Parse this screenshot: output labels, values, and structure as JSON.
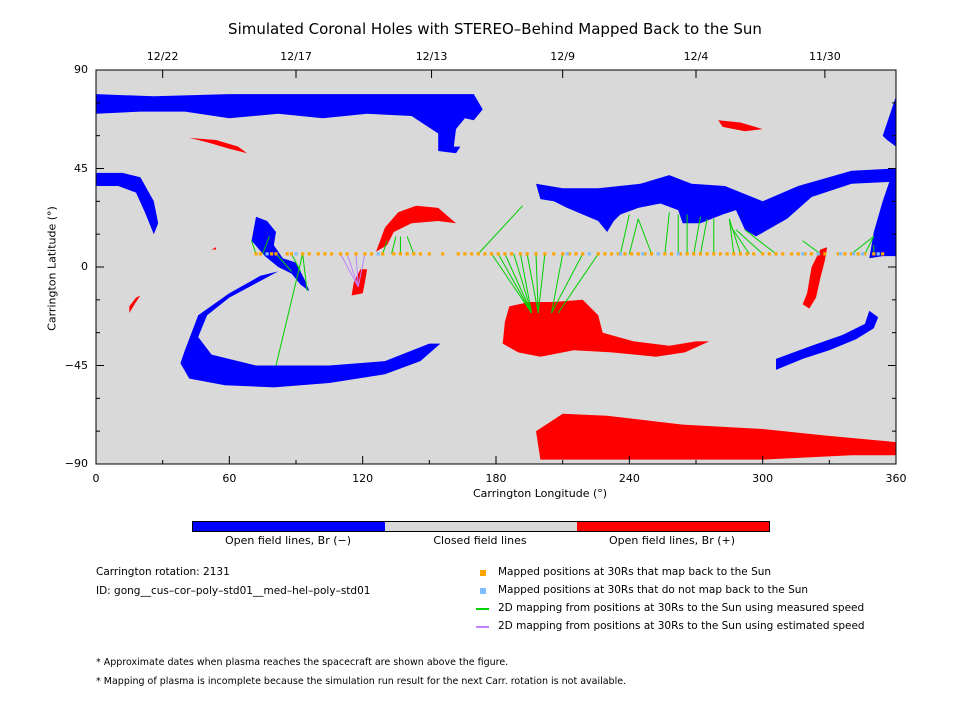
{
  "title": "Simulated Coronal Holes with STEREO–Behind Mapped Back to the Sun",
  "colors": {
    "open_neg": "#0000ff",
    "closed": "#d9d9d9",
    "open_pos": "#ff0000",
    "mapped": "#ffa500",
    "not_mapped": "#7fbfff",
    "measured": "#00d000",
    "estimated": "#c080ff"
  },
  "chart_data": {
    "type": "heatmap",
    "xlabel": "Carrington Longitude (°)",
    "ylabel": "Carrington Latitude (°)",
    "xlim": [
      0,
      360
    ],
    "ylim": [
      -90,
      90
    ],
    "x_ticks": [
      "0",
      "60",
      "120",
      "180",
      "240",
      "300",
      "360"
    ],
    "y_ticks": [
      "90",
      "45",
      "0",
      "−45",
      "−90"
    ],
    "top_dates": [
      {
        "lon": 30,
        "label": "12/22"
      },
      {
        "lon": 90,
        "label": "12/17"
      },
      {
        "lon": 151,
        "label": "12/13"
      },
      {
        "lon": 210,
        "label": "12/9"
      },
      {
        "lon": 270,
        "label": "12/4"
      },
      {
        "lon": 328,
        "label": "11/30"
      }
    ],
    "regions": [
      {
        "polarity": "negative",
        "points": [
          [
            0,
            79
          ],
          [
            26,
            78
          ],
          [
            60,
            79
          ],
          [
            90,
            79
          ],
          [
            120,
            79
          ],
          [
            170,
            79
          ],
          [
            174,
            72
          ],
          [
            170,
            67
          ],
          [
            166,
            68
          ],
          [
            162,
            63
          ],
          [
            161,
            55
          ],
          [
            164,
            55
          ],
          [
            162,
            52
          ],
          [
            154,
            53
          ],
          [
            154,
            61
          ],
          [
            142,
            69
          ],
          [
            122,
            70
          ],
          [
            102,
            68
          ],
          [
            82,
            70
          ],
          [
            60,
            68
          ],
          [
            40,
            71
          ],
          [
            20,
            71
          ],
          [
            0,
            70
          ]
        ]
      },
      {
        "polarity": "negative",
        "points": [
          [
            0,
            43
          ],
          [
            12,
            43
          ],
          [
            20,
            41
          ],
          [
            26,
            30
          ],
          [
            28,
            20
          ],
          [
            26,
            15
          ],
          [
            22,
            25
          ],
          [
            18,
            34
          ],
          [
            10,
            37
          ],
          [
            0,
            37
          ]
        ]
      },
      {
        "polarity": "negative",
        "points": [
          [
            72,
            23
          ],
          [
            77,
            21
          ],
          [
            81,
            16
          ],
          [
            80,
            10
          ],
          [
            84,
            4
          ],
          [
            90,
            2
          ],
          [
            94,
            -6
          ],
          [
            96,
            -11
          ],
          [
            92,
            -8
          ],
          [
            88,
            -3
          ],
          [
            82,
            0
          ],
          [
            76,
            5
          ],
          [
            70,
            12
          ]
        ]
      },
      {
        "polarity": "negative",
        "points": [
          [
            40,
            -38
          ],
          [
            38,
            -44
          ],
          [
            42,
            -51
          ],
          [
            58,
            -54
          ],
          [
            80,
            -55
          ],
          [
            105,
            -53
          ],
          [
            130,
            -49
          ],
          [
            146,
            -43
          ],
          [
            155,
            -35
          ],
          [
            150,
            -35
          ],
          [
            130,
            -43
          ],
          [
            105,
            -45
          ],
          [
            72,
            -45
          ],
          [
            52,
            -40
          ],
          [
            46,
            -32
          ],
          [
            50,
            -22
          ],
          [
            60,
            -14
          ],
          [
            82,
            -2
          ],
          [
            74,
            -4
          ],
          [
            60,
            -12
          ],
          [
            46,
            -22
          ]
        ]
      },
      {
        "polarity": "negative",
        "points": [
          [
            198,
            38
          ],
          [
            210,
            36
          ],
          [
            226,
            36
          ],
          [
            245,
            38
          ],
          [
            258,
            42
          ],
          [
            268,
            38
          ],
          [
            283,
            37
          ],
          [
            300,
            30
          ],
          [
            316,
            37
          ],
          [
            340,
            44
          ],
          [
            360,
            45
          ],
          [
            360,
            39
          ],
          [
            340,
            38
          ],
          [
            322,
            32
          ],
          [
            311,
            22
          ],
          [
            297,
            14
          ],
          [
            292,
            17
          ],
          [
            288,
            26
          ],
          [
            282,
            24
          ],
          [
            272,
            20
          ],
          [
            264,
            20
          ],
          [
            262,
            26
          ],
          [
            254,
            29
          ],
          [
            244,
            27
          ],
          [
            236,
            24
          ],
          [
            233,
            21
          ],
          [
            230,
            16
          ],
          [
            226,
            21
          ],
          [
            212,
            27
          ],
          [
            206,
            30
          ],
          [
            200,
            31
          ]
        ]
      },
      {
        "polarity": "negative",
        "points": [
          [
            306,
            -47
          ],
          [
            318,
            -42
          ],
          [
            330,
            -38
          ],
          [
            342,
            -33
          ],
          [
            350,
            -28
          ],
          [
            352,
            -23
          ],
          [
            348,
            -20
          ],
          [
            346,
            -26
          ],
          [
            336,
            -31
          ],
          [
            322,
            -36
          ],
          [
            306,
            -42
          ]
        ]
      },
      {
        "polarity": "negative",
        "points": [
          [
            350,
            16
          ],
          [
            354,
            30
          ],
          [
            358,
            42
          ],
          [
            360,
            45
          ],
          [
            360,
            5
          ],
          [
            354,
            5
          ],
          [
            348,
            4
          ]
        ]
      },
      {
        "polarity": "negative",
        "points": [
          [
            354,
            60
          ],
          [
            358,
            72
          ],
          [
            360,
            78
          ],
          [
            360,
            55
          ],
          [
            356,
            58
          ]
        ]
      },
      {
        "polarity": "positive",
        "points": [
          [
            120,
            -12
          ],
          [
            121,
            -7
          ],
          [
            122,
            -1
          ],
          [
            119,
            -1
          ],
          [
            116,
            -7
          ],
          [
            115,
            -13
          ]
        ]
      },
      {
        "polarity": "positive",
        "points": [
          [
            126,
            7
          ],
          [
            130,
            18
          ],
          [
            136,
            25
          ],
          [
            144,
            28
          ],
          [
            154,
            27
          ],
          [
            162,
            20
          ],
          [
            154,
            21
          ],
          [
            142,
            20
          ],
          [
            134,
            16
          ],
          [
            131,
            10
          ]
        ]
      },
      {
        "polarity": "positive",
        "points": [
          [
            184,
            -25
          ],
          [
            183,
            -35
          ],
          [
            190,
            -39
          ],
          [
            200,
            -41
          ],
          [
            215,
            -38
          ],
          [
            232,
            -39
          ],
          [
            252,
            -41
          ],
          [
            265,
            -39
          ],
          [
            276,
            -34
          ],
          [
            270,
            -34
          ],
          [
            258,
            -36
          ],
          [
            242,
            -34
          ],
          [
            228,
            -30
          ],
          [
            226,
            -22
          ],
          [
            219,
            -15
          ],
          [
            206,
            -16
          ],
          [
            195,
            -16
          ],
          [
            186,
            -18
          ]
        ]
      },
      {
        "polarity": "positive",
        "points": [
          [
            200,
            -88
          ],
          [
            220,
            -88
          ],
          [
            260,
            -88
          ],
          [
            300,
            -88
          ],
          [
            340,
            -86
          ],
          [
            360,
            -86
          ],
          [
            360,
            -80
          ],
          [
            328,
            -77
          ],
          [
            300,
            -74
          ],
          [
            264,
            -72
          ],
          [
            230,
            -68
          ],
          [
            210,
            -67
          ],
          [
            198,
            -75
          ]
        ]
      },
      {
        "polarity": "positive",
        "points": [
          [
            318,
            -17
          ],
          [
            320,
            -12
          ],
          [
            322,
            0
          ],
          [
            326,
            8
          ],
          [
            329,
            9
          ],
          [
            328,
            3
          ],
          [
            326,
            -5
          ],
          [
            324,
            -14
          ],
          [
            321,
            -19
          ]
        ]
      },
      {
        "polarity": "positive",
        "points": [
          [
            42,
            59
          ],
          [
            50,
            57
          ],
          [
            60,
            54
          ],
          [
            68,
            52
          ],
          [
            64,
            55
          ],
          [
            54,
            58
          ]
        ]
      },
      {
        "polarity": "positive",
        "points": [
          [
            280,
            67
          ],
          [
            290,
            66
          ],
          [
            300,
            63
          ],
          [
            292,
            62
          ],
          [
            282,
            64
          ]
        ]
      },
      {
        "polarity": "positive",
        "points": [
          [
            15,
            -21
          ],
          [
            18,
            -16
          ],
          [
            20,
            -13
          ],
          [
            18,
            -14
          ],
          [
            15,
            -18
          ]
        ]
      },
      {
        "polarity": "positive",
        "points": [
          [
            52,
            8
          ],
          [
            54,
            9
          ],
          [
            54,
            8
          ]
        ]
      }
    ],
    "mapped_points": [
      72,
      74,
      79,
      81,
      86,
      88,
      93,
      96,
      100,
      103,
      106,
      110,
      113,
      117,
      121,
      124,
      129,
      134,
      137,
      140,
      143,
      146,
      150,
      156,
      163,
      166,
      169,
      172,
      175,
      178,
      181,
      184,
      187,
      191,
      194,
      198,
      202,
      206,
      210,
      213,
      216,
      219,
      226,
      229,
      232,
      235,
      238,
      241,
      244,
      247,
      250,
      253,
      256,
      259,
      263,
      266,
      269,
      272,
      275,
      278,
      281,
      284,
      287,
      290,
      293,
      296,
      300,
      303,
      306,
      309,
      313,
      316,
      319,
      322,
      325,
      328,
      334,
      337,
      340,
      343,
      346,
      350,
      354
    ],
    "unmapped_points": [
      77,
      90,
      127,
      212,
      222,
      236,
      246,
      253,
      262,
      318,
      325,
      335,
      341,
      345,
      352
    ],
    "mapping_lat": 6,
    "measured_lines": [
      [
        72,
        6,
        70,
        12
      ],
      [
        75,
        6,
        78,
        14
      ],
      [
        81,
        6,
        88,
        -2
      ],
      [
        88,
        6,
        92,
        -2
      ],
      [
        93,
        6,
        95,
        -11
      ],
      [
        93,
        6,
        81,
        -45
      ],
      [
        129,
        6,
        131,
        12
      ],
      [
        133,
        6,
        135,
        14
      ],
      [
        137,
        6,
        137,
        14
      ],
      [
        143,
        6,
        140,
        14
      ],
      [
        172,
        6,
        192,
        28
      ],
      [
        178,
        6,
        196,
        -21
      ],
      [
        181,
        6,
        196,
        -21
      ],
      [
        184,
        6,
        196,
        -21
      ],
      [
        188,
        6,
        196,
        -21
      ],
      [
        191,
        6,
        196,
        -21
      ],
      [
        194,
        6,
        199,
        -21
      ],
      [
        198,
        6,
        199,
        -21
      ],
      [
        202,
        6,
        199,
        -21
      ],
      [
        210,
        6,
        205,
        -21
      ],
      [
        219,
        6,
        205,
        -21
      ],
      [
        226,
        6,
        208,
        -21
      ],
      [
        236,
        6,
        240,
        24
      ],
      [
        240,
        6,
        244,
        22
      ],
      [
        250,
        6,
        244,
        22
      ],
      [
        256,
        6,
        258,
        25
      ],
      [
        262,
        6,
        262,
        24
      ],
      [
        266,
        6,
        266,
        24
      ],
      [
        269,
        6,
        272,
        23
      ],
      [
        272,
        6,
        275,
        22
      ],
      [
        278,
        6,
        278,
        22
      ],
      [
        287,
        6,
        285,
        22
      ],
      [
        290,
        6,
        285,
        22
      ],
      [
        294,
        6,
        286,
        18
      ],
      [
        300,
        6,
        288,
        17
      ],
      [
        306,
        6,
        292,
        17
      ],
      [
        326,
        6,
        318,
        12
      ],
      [
        340,
        6,
        350,
        14
      ],
      [
        346,
        6,
        350,
        14
      ],
      [
        350,
        6,
        350,
        10
      ]
    ],
    "estimated_lines": [
      [
        110,
        6,
        118,
        -9
      ],
      [
        113,
        6,
        118,
        -9
      ],
      [
        117,
        6,
        118,
        -9
      ],
      [
        121,
        6,
        118,
        -9
      ]
    ]
  },
  "colorbar": {
    "labels": [
      "Open field lines, Br (−)",
      "Closed field lines",
      "Open field lines, Br (+)"
    ]
  },
  "info": {
    "rotation": "Carrington rotation: 2131",
    "id": "ID: gong__cus–cor–poly–std01__med–hel–poly–std01"
  },
  "legend": {
    "mapped": "Mapped positions at 30Rs that map back to the Sun",
    "not_mapped": "Mapped positions at 30Rs that do not map back to the Sun",
    "measured": "2D mapping from positions at 30Rs to the Sun using measured speed",
    "estimated": "2D mapping from positions at 30Rs to the Sun using estimated speed"
  },
  "notes": [
    "* Approximate dates when plasma reaches the spacecraft are shown above the figure.",
    "* Mapping of plasma is incomplete because the simulation run result for the next Carr. rotation is not available."
  ]
}
